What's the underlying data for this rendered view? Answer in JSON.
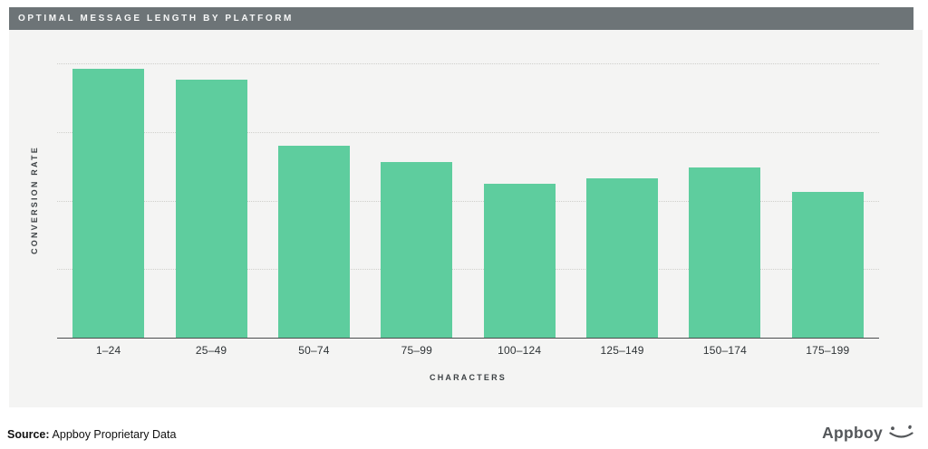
{
  "header": {
    "title": "OPTIMAL MESSAGE LENGTH BY PLATFORM"
  },
  "chart_data": {
    "type": "bar",
    "title": "OPTIMAL MESSAGE LENGTH BY PLATFORM",
    "categories": [
      "1–24",
      "25–49",
      "50–74",
      "75–99",
      "100–124",
      "125–149",
      "150–174",
      "175–199"
    ],
    "values": [
      98,
      94,
      70,
      64,
      56,
      58,
      62,
      53
    ],
    "xlabel": "CHARACTERS",
    "ylabel": "CONVERSION RATE",
    "ylim": [
      0,
      100
    ],
    "yticks_labeled": false,
    "grid": "horizontal dotted lines at 25, 50, 75, 100",
    "legend": "none",
    "bar_color": "#5ecd9e"
  },
  "colors": {
    "title_bar_bg": "#6d7477",
    "title_bar_text": "#f6f7f7",
    "panel_bg": "#f4f4f3",
    "bar": "#5ecd9e",
    "gridline": "#cfcfcb",
    "axis_line": "#4b4d4e",
    "tick_text": "#2e3336"
  },
  "footer": {
    "source_label": "Source:",
    "source_text": "Appboy Proprietary Data",
    "brand": "Appboy",
    "logo_icon": "appboy-smiley-icon"
  }
}
